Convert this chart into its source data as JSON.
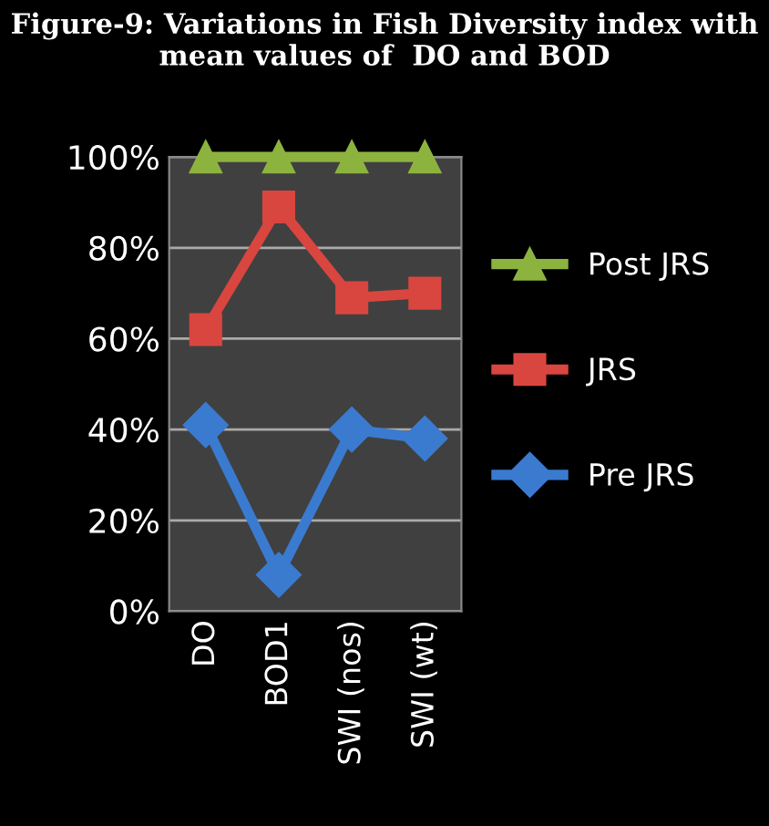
{
  "chart_data": {
    "type": "line",
    "title": "Figure-9: Variations in Fish Diversity index with mean values of  DO and BOD",
    "categories": [
      "DO",
      "BOD1",
      "SWI (nos)",
      "SWI (wt)"
    ],
    "series": [
      {
        "name": "Post JRS",
        "color": "#8db33f",
        "values": [
          100,
          100,
          100,
          100
        ],
        "marker": "triangle"
      },
      {
        "name": "JRS",
        "color": "#d9463f",
        "values": [
          62,
          89,
          69,
          70
        ],
        "marker": "square"
      },
      {
        "name": "Pre JRS",
        "color": "#3a7bd0",
        "values": [
          41,
          8,
          40,
          38
        ],
        "marker": "diamond"
      }
    ],
    "ylim": [
      0,
      100
    ],
    "yticks": [
      {
        "value": 0,
        "label": "0%"
      },
      {
        "value": 20,
        "label": "20%"
      },
      {
        "value": 40,
        "label": "40%"
      },
      {
        "value": 60,
        "label": "60%"
      },
      {
        "value": 80,
        "label": "80%"
      },
      {
        "value": 100,
        "label": "100%"
      }
    ],
    "grid": "y",
    "legend": "right"
  }
}
